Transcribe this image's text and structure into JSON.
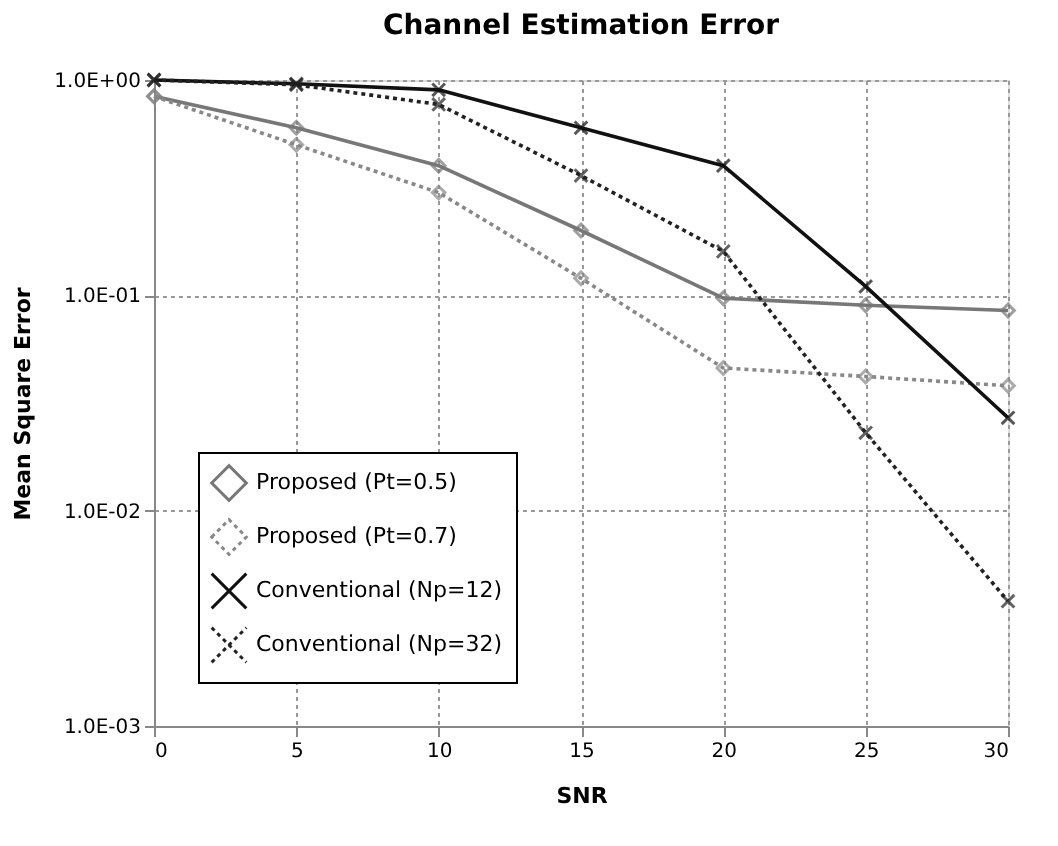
{
  "chart_data": {
    "type": "line",
    "title": "Channel Estimation Error",
    "xlabel": "SNR",
    "ylabel": "Mean Square Error",
    "x": [
      0,
      5,
      10,
      15,
      20,
      25,
      30
    ],
    "series": [
      {
        "name": "Proposed (Pt=0.5)",
        "color": "#777777",
        "marker": "diamond",
        "line_style": "solid",
        "values": [
          0.84,
          0.6,
          0.4,
          0.2,
          0.097,
          0.09,
          0.085
        ]
      },
      {
        "name": "Proposed (Pt=0.7)",
        "color": "#888888",
        "marker": "diamond",
        "line_style": "dotted",
        "values": [
          0.84,
          0.5,
          0.3,
          0.12,
          0.046,
          0.042,
          0.038
        ]
      },
      {
        "name": "Conventional (Np=12)",
        "color": "#111111",
        "marker": "cross",
        "line_style": "solid",
        "values": [
          1.0,
          0.96,
          0.9,
          0.6,
          0.4,
          0.11,
          0.027
        ]
      },
      {
        "name": "Conventional (Np=32)",
        "color": "#222222",
        "marker": "cross",
        "line_style": "dotted",
        "values": [
          1.0,
          0.95,
          0.77,
          0.36,
          0.16,
          0.023,
          0.0038
        ]
      }
    ],
    "xlim": [
      0,
      30
    ],
    "xticks": [
      0,
      5,
      10,
      15,
      20,
      25,
      30
    ],
    "ylim": [
      0.001,
      1
    ],
    "yticks": [
      {
        "value": 1,
        "label": "1.0E+00"
      },
      {
        "value": 0.1,
        "label": "1.0E-01"
      },
      {
        "value": 0.01,
        "label": "1.0E-02"
      },
      {
        "value": 0.001,
        "label": "1.0E-03"
      }
    ],
    "log": "y",
    "grid": true,
    "legend": "bottom left"
  }
}
